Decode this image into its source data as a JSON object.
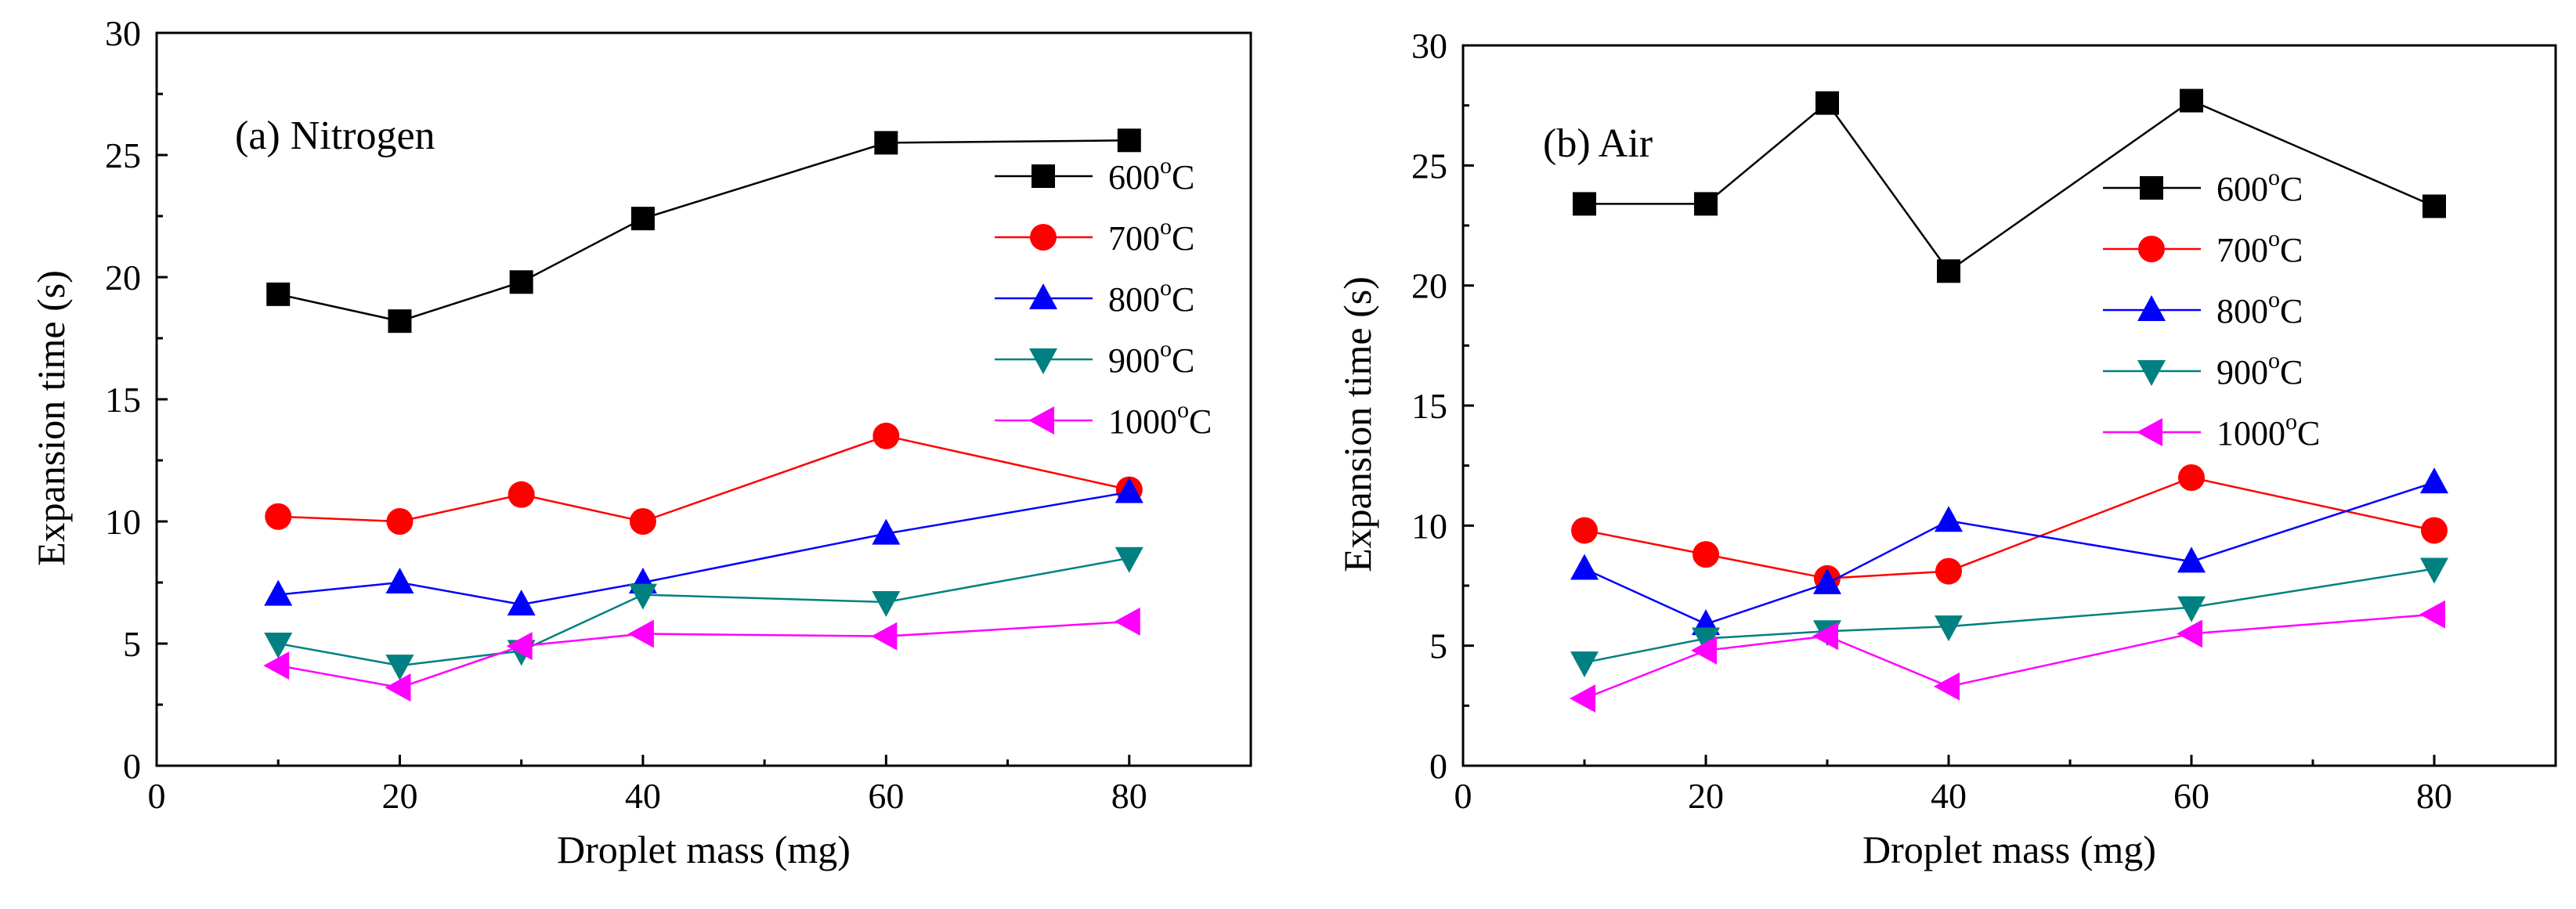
{
  "chart_data": [
    {
      "type": "line",
      "title": "(a) Nitrogen",
      "xlabel": "Droplet mass (mg)",
      "ylabel": "Expansion time (s)",
      "xlim": [
        0,
        90
      ],
      "ylim": [
        0,
        30
      ],
      "xticks": [
        0,
        20,
        40,
        60,
        80
      ],
      "yticks": [
        0,
        5,
        10,
        15,
        20,
        25,
        30
      ],
      "x": [
        10,
        20,
        30,
        40,
        60,
        80
      ],
      "legend_position": "top-right",
      "series": [
        {
          "name": "600",
          "unit": "oC",
          "color": "#000000",
          "marker": "square",
          "values": [
            19.3,
            18.2,
            19.8,
            22.4,
            25.5,
            25.6
          ]
        },
        {
          "name": "700",
          "unit": "oC",
          "color": "#ff0000",
          "marker": "circle",
          "values": [
            10.2,
            10.0,
            11.1,
            10.0,
            13.5,
            11.3
          ]
        },
        {
          "name": "800",
          "unit": "oC",
          "color": "#0000ff",
          "marker": "triangle-up",
          "values": [
            7.0,
            7.5,
            6.6,
            7.5,
            9.5,
            11.2
          ]
        },
        {
          "name": "900",
          "unit": "oC",
          "color": "#008080",
          "marker": "triangle-down",
          "values": [
            5.0,
            4.1,
            4.7,
            7.0,
            6.7,
            8.5
          ]
        },
        {
          "name": "1000",
          "unit": "oC",
          "color": "#ff00ff",
          "marker": "triangle-left",
          "values": [
            4.1,
            3.2,
            4.9,
            5.4,
            5.3,
            5.9
          ]
        }
      ]
    },
    {
      "type": "line",
      "title": "(b) Air",
      "xlabel": "Droplet mass (mg)",
      "ylabel": "Expansion time (s)",
      "xlim": [
        0,
        90
      ],
      "ylim": [
        0,
        30
      ],
      "xticks": [
        0,
        20,
        40,
        60,
        80
      ],
      "yticks": [
        0,
        5,
        10,
        15,
        20,
        25,
        30
      ],
      "x": [
        10,
        20,
        30,
        40,
        60,
        80
      ],
      "legend_position": "top-right",
      "series": [
        {
          "name": "600",
          "unit": "oC",
          "color": "#000000",
          "marker": "square",
          "values": [
            23.4,
            23.4,
            27.6,
            20.6,
            27.7,
            23.3
          ]
        },
        {
          "name": "700",
          "unit": "oC",
          "color": "#ff0000",
          "marker": "circle",
          "values": [
            9.8,
            8.8,
            7.8,
            8.1,
            12.0,
            9.8
          ]
        },
        {
          "name": "800",
          "unit": "oC",
          "color": "#0000ff",
          "marker": "triangle-up",
          "values": [
            8.2,
            5.9,
            7.6,
            10.2,
            8.5,
            11.8
          ]
        },
        {
          "name": "900",
          "unit": "oC",
          "color": "#008080",
          "marker": "triangle-down",
          "values": [
            4.3,
            5.3,
            5.6,
            5.8,
            6.6,
            8.2
          ]
        },
        {
          "name": "1000",
          "unit": "oC",
          "color": "#ff00ff",
          "marker": "triangle-left",
          "values": [
            2.8,
            4.8,
            5.4,
            3.3,
            5.5,
            6.3
          ]
        }
      ]
    }
  ]
}
